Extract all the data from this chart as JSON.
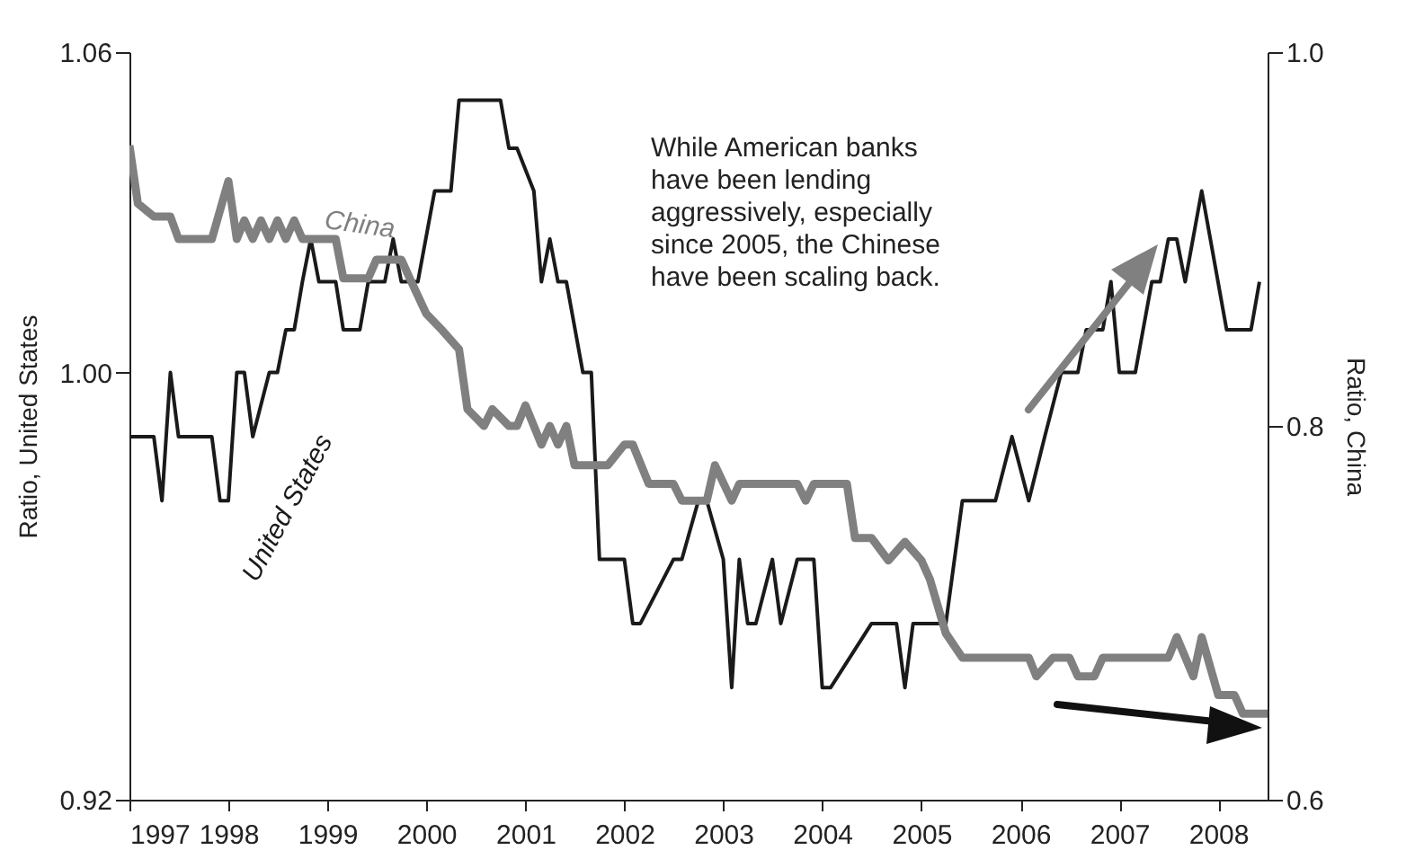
{
  "chart_data": {
    "type": "line",
    "ylabel": "Ratio, United States",
    "y2label": "Ratio, China",
    "annotations": [
      "While American banks have been lending aggressively, especially since 2005, the Chinese have been scaling back."
    ],
    "xlim": [
      "1997-01",
      "2008-07"
    ],
    "xticks": [
      "1997",
      "1998",
      "1999",
      "2000",
      "2001",
      "2002",
      "2003",
      "2004",
      "2005",
      "2006",
      "2007",
      "2008"
    ],
    "ylim": [
      0.92,
      1.06
    ],
    "yticks": [
      0.92,
      {
        "value": 1.0,
        "label": "1.00"
      },
      1.06
    ],
    "y2lim": [
      0.6,
      1.0
    ],
    "y2ticks": [
      0.6,
      0.8,
      {
        "value": 1.0,
        "label": "1.0"
      }
    ],
    "series": [
      {
        "name": "United States",
        "color": "#1a1a1a",
        "x": [
          "1997-01",
          "1997-04",
          "1997-05",
          "1997-06",
          "1997-07",
          "1997-11",
          "1997-12",
          "1998-01",
          "1998-02",
          "1998-03",
          "1998-04",
          "1998-06",
          "1998-07",
          "1998-08",
          "1998-09",
          "1998-10",
          "1998-11",
          "1998-12",
          "1999-02",
          "1999-03",
          "1999-05",
          "1999-06",
          "1999-08",
          "1999-09",
          "1999-10",
          "1999-12",
          "2000-02",
          "2000-04",
          "2000-05",
          "2000-10",
          "2000-11",
          "2000-12",
          "2001-02",
          "2001-03",
          "2001-04",
          "2001-05",
          "2001-06",
          "2001-08",
          "2001-09",
          "2001-10",
          "2002-01",
          "2002-02",
          "2002-03",
          "2002-07",
          "2002-08",
          "2002-10",
          "2002-11",
          "2003-01",
          "2003-02",
          "2003-03",
          "2003-04",
          "2003-05",
          "2003-07",
          "2003-08",
          "2003-10",
          "2003-12",
          "2004-01",
          "2004-02",
          "2004-07",
          "2004-08",
          "2004-10",
          "2004-11",
          "2004-12",
          "2005-04",
          "2005-06",
          "2005-10",
          "2005-12",
          "2006-02",
          "2006-04",
          "2006-06",
          "2006-08",
          "2006-09",
          "2006-11",
          "2006-12",
          "2007-01",
          "2007-03",
          "2007-05",
          "2007-06",
          "2007-07",
          "2007-08",
          "2007-09",
          "2007-11",
          "2008-02",
          "2008-05",
          "2008-06"
        ],
        "values": [
          0.988,
          0.988,
          0.976,
          1.0,
          0.988,
          0.988,
          0.976,
          0.976,
          1.0,
          1.0,
          0.988,
          1.0,
          1.0,
          1.008,
          1.008,
          1.017,
          1.025,
          1.017,
          1.017,
          1.008,
          1.008,
          1.017,
          1.017,
          1.025,
          1.017,
          1.017,
          1.034,
          1.034,
          1.051,
          1.051,
          1.042,
          1.042,
          1.034,
          1.017,
          1.025,
          1.017,
          1.017,
          1.0,
          1.0,
          0.965,
          0.965,
          0.953,
          0.953,
          0.965,
          0.965,
          0.976,
          0.976,
          0.965,
          0.941,
          0.965,
          0.953,
          0.953,
          0.965,
          0.953,
          0.965,
          0.965,
          0.941,
          0.941,
          0.953,
          0.953,
          0.953,
          0.941,
          0.953,
          0.953,
          0.976,
          0.976,
          0.988,
          0.976,
          0.988,
          1.0,
          1.0,
          1.008,
          1.008,
          1.017,
          1.0,
          1.0,
          1.017,
          1.017,
          1.025,
          1.025,
          1.017,
          1.034,
          1.008,
          1.008,
          1.017
        ]
      },
      {
        "name": "China",
        "color": "#808080",
        "axis": "y2",
        "x": [
          "1997-01",
          "1997-02",
          "1997-04",
          "1997-06",
          "1997-07",
          "1997-11",
          "1998-01",
          "1998-02",
          "1998-03",
          "1998-04",
          "1998-05",
          "1998-06",
          "1998-07",
          "1998-08",
          "1998-09",
          "1998-10",
          "1999-02",
          "1999-03",
          "1999-06",
          "1999-07",
          "1999-10",
          "1999-11",
          "2000-01",
          "2000-03",
          "2000-05",
          "2000-06",
          "2000-08",
          "2000-09",
          "2000-11",
          "2000-12",
          "2001-01",
          "2001-03",
          "2001-04",
          "2001-05",
          "2001-06",
          "2001-07",
          "2001-11",
          "2002-01",
          "2002-02",
          "2002-04",
          "2002-07",
          "2002-08",
          "2002-11",
          "2002-12",
          "2003-02",
          "2003-03",
          "2003-10",
          "2003-11",
          "2003-12",
          "2004-04",
          "2004-05",
          "2004-07",
          "2004-09",
          "2004-11",
          "2005-01",
          "2005-02",
          "2005-04",
          "2005-06",
          "2006-02",
          "2006-03",
          "2006-05",
          "2006-07",
          "2006-08",
          "2006-10",
          "2006-11",
          "2007-07",
          "2007-08",
          "2007-10",
          "2007-11",
          "2008-01",
          "2008-03",
          "2008-04",
          "2008-07"
        ],
        "values": [
          0.95,
          0.919,
          0.912,
          0.912,
          0.9,
          0.9,
          0.931,
          0.9,
          0.91,
          0.9,
          0.91,
          0.9,
          0.91,
          0.9,
          0.91,
          0.9,
          0.9,
          0.879,
          0.879,
          0.889,
          0.889,
          0.879,
          0.86,
          0.851,
          0.841,
          0.809,
          0.8,
          0.809,
          0.8,
          0.8,
          0.811,
          0.79,
          0.8,
          0.79,
          0.8,
          0.779,
          0.779,
          0.79,
          0.79,
          0.769,
          0.769,
          0.76,
          0.76,
          0.779,
          0.76,
          0.769,
          0.769,
          0.76,
          0.769,
          0.769,
          0.74,
          0.74,
          0.728,
          0.738,
          0.728,
          0.718,
          0.689,
          0.676,
          0.676,
          0.666,
          0.676,
          0.676,
          0.666,
          0.666,
          0.676,
          0.676,
          0.687,
          0.666,
          0.687,
          0.656,
          0.656,
          0.646,
          0.646
        ]
      }
    ]
  }
}
